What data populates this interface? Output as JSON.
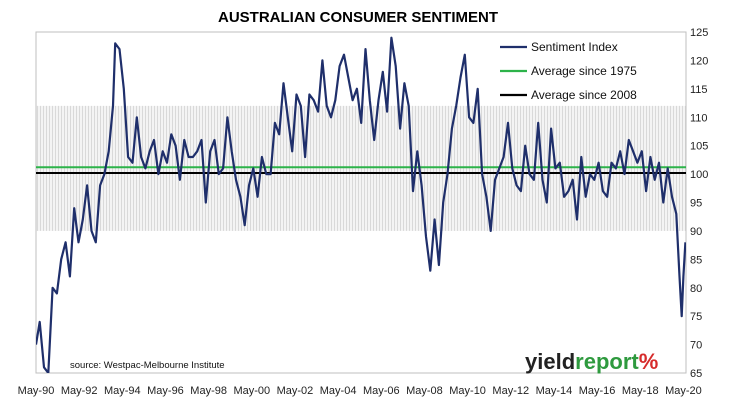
{
  "chart_data": {
    "type": "line",
    "title": "AUSTRALIAN CONSUMER SENTIMENT",
    "source_note": "source: Westpac-Melbourne Institute",
    "brand": {
      "part1": "yield",
      "part2": "report",
      "symbol": "%"
    },
    "colors": {
      "sentiment": "#1f2f6b",
      "avg1975": "#2db34a",
      "avg2008": "#000000",
      "band": "#d9d9d9",
      "brand_dark": "#222222",
      "brand_accent": "#2e9a3e",
      "brand_red": "#d62b2b"
    },
    "xlim": [
      1990.33,
      2020.45
    ],
    "ylim": [
      65,
      125
    ],
    "y_ticks": [
      65,
      70,
      75,
      80,
      85,
      90,
      95,
      100,
      105,
      110,
      115,
      120,
      125
    ],
    "x_ticks": [
      {
        "label": "May-90",
        "x": 1990.33
      },
      {
        "label": "May-92",
        "x": 1992.33
      },
      {
        "label": "May-94",
        "x": 1994.33
      },
      {
        "label": "May-96",
        "x": 1996.33
      },
      {
        "label": "May-98",
        "x": 1998.33
      },
      {
        "label": "May-00",
        "x": 2000.33
      },
      {
        "label": "May-02",
        "x": 2002.33
      },
      {
        "label": "May-04",
        "x": 2004.33
      },
      {
        "label": "May-06",
        "x": 2006.33
      },
      {
        "label": "May-08",
        "x": 2008.33
      },
      {
        "label": "May-10",
        "x": 2010.33
      },
      {
        "label": "May-12",
        "x": 2012.33
      },
      {
        "label": "May-14",
        "x": 2014.33
      },
      {
        "label": "May-16",
        "x": 2016.33
      },
      {
        "label": "May-18",
        "x": 2018.33
      },
      {
        "label": "May-20",
        "x": 2020.33
      }
    ],
    "band": [
      90,
      112
    ],
    "grid": false,
    "legend_position": "top-right",
    "series": [
      {
        "name": "Sentiment Index",
        "x": [
          1990.33,
          1990.5,
          1990.7,
          1990.9,
          1991.1,
          1991.3,
          1991.5,
          1991.7,
          1991.9,
          1992.1,
          1992.3,
          1992.5,
          1992.7,
          1992.9,
          1993.1,
          1993.3,
          1993.5,
          1993.7,
          1993.9,
          1994.0,
          1994.2,
          1994.4,
          1994.6,
          1994.8,
          1995.0,
          1995.2,
          1995.4,
          1995.6,
          1995.8,
          1996.0,
          1996.2,
          1996.4,
          1996.6,
          1996.8,
          1997.0,
          1997.2,
          1997.4,
          1997.6,
          1997.8,
          1998.0,
          1998.2,
          1998.4,
          1998.6,
          1998.8,
          1999.0,
          1999.2,
          1999.4,
          1999.6,
          1999.8,
          2000.0,
          2000.2,
          2000.4,
          2000.6,
          2000.8,
          2001.0,
          2001.2,
          2001.4,
          2001.6,
          2001.8,
          2002.0,
          2002.2,
          2002.4,
          2002.6,
          2002.8,
          2003.0,
          2003.2,
          2003.4,
          2003.6,
          2003.8,
          2004.0,
          2004.2,
          2004.4,
          2004.6,
          2004.8,
          2005.0,
          2005.2,
          2005.4,
          2005.6,
          2005.8,
          2006.0,
          2006.2,
          2006.4,
          2006.6,
          2006.8,
          2007.0,
          2007.2,
          2007.4,
          2007.6,
          2007.8,
          2008.0,
          2008.2,
          2008.4,
          2008.6,
          2008.8,
          2009.0,
          2009.2,
          2009.4,
          2009.6,
          2009.8,
          2010.0,
          2010.2,
          2010.4,
          2010.6,
          2010.8,
          2011.0,
          2011.2,
          2011.4,
          2011.6,
          2011.8,
          2012.0,
          2012.2,
          2012.4,
          2012.6,
          2012.8,
          2013.0,
          2013.2,
          2013.4,
          2013.6,
          2013.8,
          2014.0,
          2014.2,
          2014.4,
          2014.6,
          2014.8,
          2015.0,
          2015.2,
          2015.4,
          2015.6,
          2015.8,
          2016.0,
          2016.2,
          2016.4,
          2016.6,
          2016.8,
          2017.0,
          2017.2,
          2017.4,
          2017.6,
          2017.8,
          2018.0,
          2018.2,
          2018.4,
          2018.6,
          2018.8,
          2019.0,
          2019.2,
          2019.4,
          2019.6,
          2019.8,
          2020.0,
          2020.15,
          2020.25,
          2020.33,
          2020.42
        ],
        "values": [
          70,
          74,
          66,
          65,
          80,
          79,
          85,
          88,
          82,
          94,
          88,
          92,
          98,
          90,
          88,
          98,
          100,
          104,
          112,
          123,
          122,
          115,
          103,
          102,
          110,
          103,
          101,
          104,
          106,
          100,
          104,
          102,
          107,
          105,
          99,
          106,
          103,
          103,
          104,
          106,
          95,
          104,
          106,
          100,
          101,
          110,
          104,
          99,
          96,
          91,
          98,
          101,
          96,
          103,
          100,
          100,
          109,
          107,
          116,
          110,
          104,
          114,
          112,
          103,
          114,
          113,
          111,
          120,
          112,
          110,
          113,
          119,
          121,
          117,
          113,
          115,
          109,
          122,
          113,
          106,
          113,
          118,
          111,
          124,
          119,
          108,
          116,
          112,
          97,
          104,
          98,
          89,
          83,
          92,
          84,
          95,
          100,
          108,
          112,
          117,
          121,
          110,
          109,
          115,
          100,
          96,
          90,
          99,
          101,
          103,
          109,
          101,
          98,
          97,
          105,
          100,
          99,
          109,
          99,
          95,
          108,
          101,
          102,
          96,
          97,
          99,
          92,
          103,
          96,
          100,
          99,
          102,
          97,
          96,
          102,
          101,
          104,
          100,
          106,
          104,
          102,
          104,
          97,
          103,
          99,
          102,
          95,
          101,
          96,
          93,
          82,
          75,
          82,
          88
        ]
      }
    ],
    "reference_lines": [
      {
        "name": "Average since 1975",
        "value": 101.2
      },
      {
        "name": "Average since 2008",
        "value": 100.2
      }
    ]
  }
}
